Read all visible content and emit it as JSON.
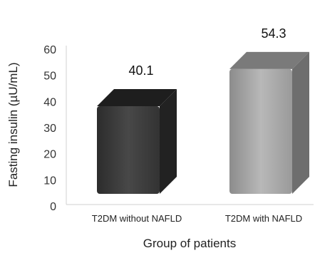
{
  "chart_data": {
    "type": "bar",
    "categories": [
      "T2DM without NAFLD",
      "T2DM with NAFLD"
    ],
    "values": [
      40.1,
      54.3
    ],
    "value_labels": [
      "40.1",
      "54.3"
    ],
    "xlabel": "Group of patients",
    "ylabel": "Fasting insulin (µU/mL)",
    "ylim": [
      0,
      60
    ],
    "yticks": [
      "0",
      "10",
      "20",
      "30",
      "40",
      "50",
      "60"
    ],
    "grid": false,
    "legend": "none",
    "bar_colors": [
      "#3d3d3d",
      "#a6a6a6"
    ]
  }
}
